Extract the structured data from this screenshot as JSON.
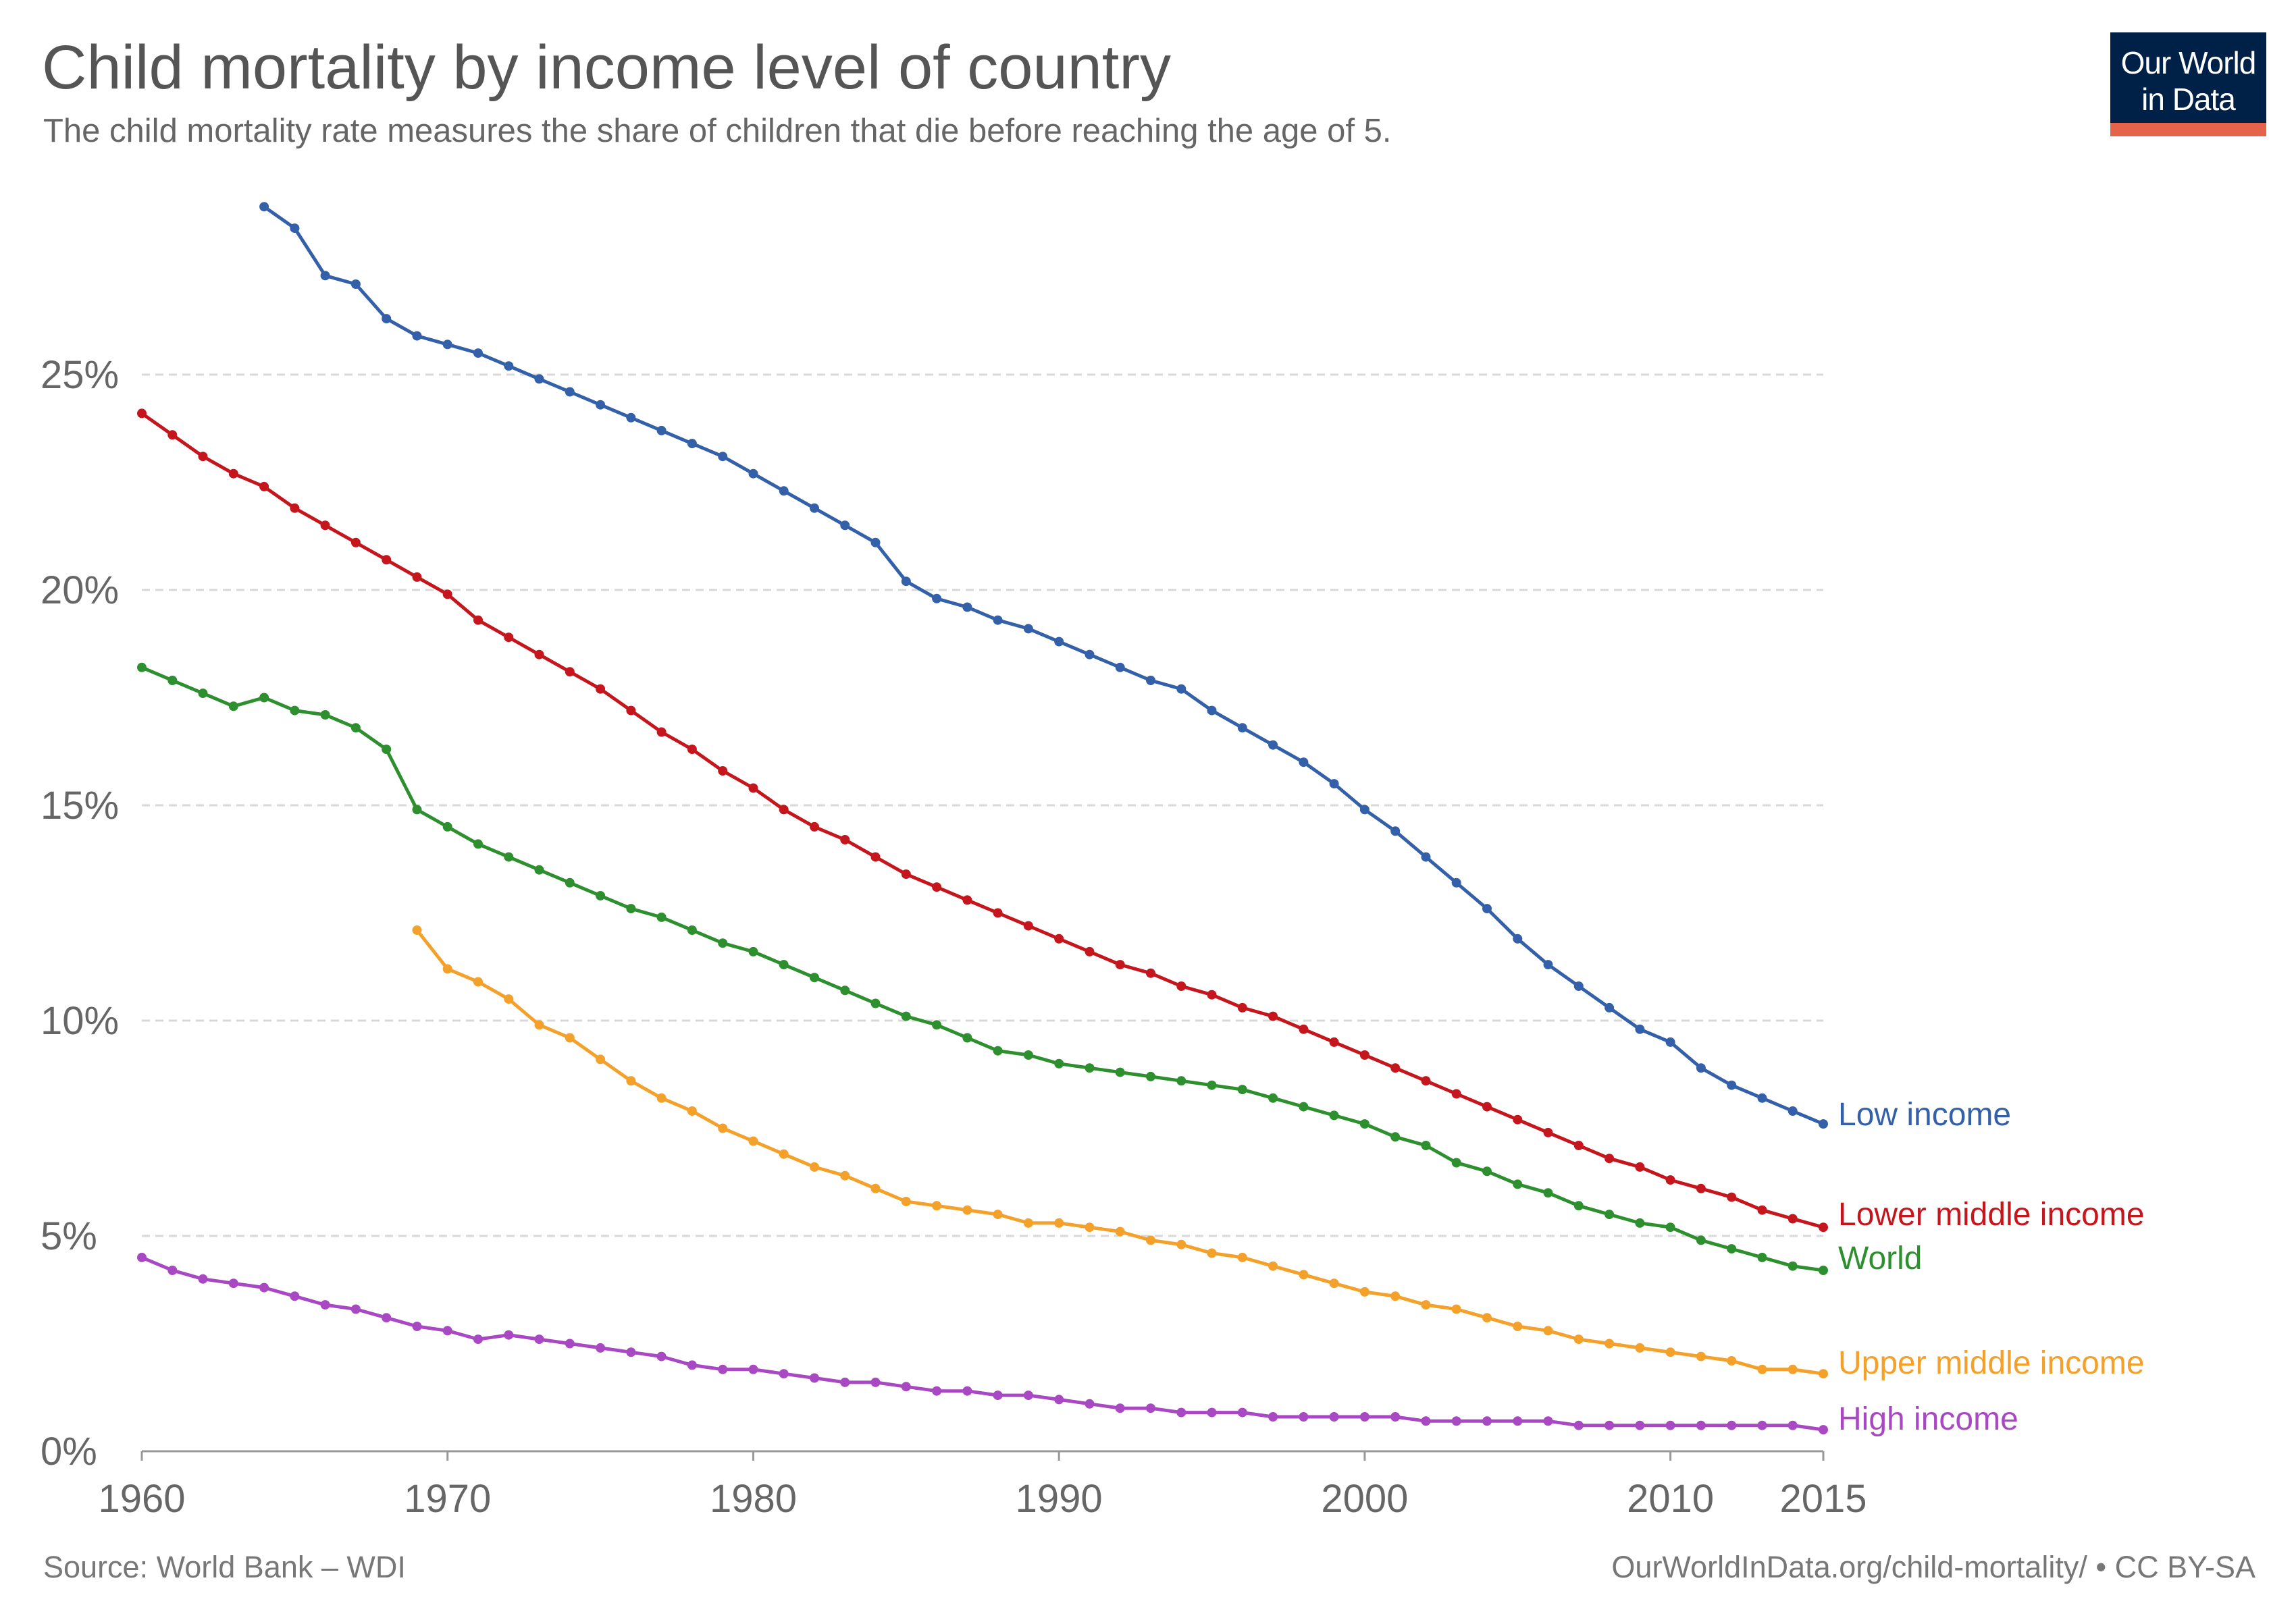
{
  "header": {
    "title": "Child mortality by income level of country",
    "subtitle": "The child mortality rate measures the share of children that die before reaching the age of 5."
  },
  "logo": {
    "line1": "Our World",
    "line2": "in Data"
  },
  "footer": {
    "source": "Source: World Bank – WDI",
    "url": "OurWorldInData.org/child-mortality/ • CC BY-SA"
  },
  "colors": {
    "low": "#3360a9",
    "lower_middle": "#c4161c",
    "world": "#2e8f2e",
    "upper_middle": "#f3a12a",
    "high": "#a848c2",
    "grid": "#d8d8d8",
    "axis": "#999999"
  },
  "chart_data": {
    "type": "line",
    "title": "Child mortality by income level of country",
    "xlabel": "",
    "ylabel": "",
    "xlim": [
      1960,
      2015
    ],
    "ylim": [
      0,
      30
    ],
    "x_ticks": [
      1960,
      1970,
      1980,
      1990,
      2000,
      2010,
      2015
    ],
    "y_ticks": [
      0,
      5,
      10,
      15,
      20,
      25
    ],
    "y_tick_labels": [
      "0%",
      "5%",
      "10%",
      "15%",
      "20%",
      "25%"
    ],
    "grid": true,
    "legend": "inline-right",
    "series": [
      {
        "name": "Low income",
        "key": "low",
        "start": 1964,
        "values": [
          28.9,
          28.4,
          27.3,
          27.1,
          26.3,
          25.9,
          25.7,
          25.5,
          25.2,
          24.9,
          24.6,
          24.3,
          24.0,
          23.7,
          23.4,
          23.1,
          22.7,
          22.3,
          21.9,
          21.5,
          21.1,
          20.2,
          19.8,
          19.6,
          19.3,
          19.1,
          18.8,
          18.5,
          18.2,
          17.9,
          17.7,
          17.2,
          16.8,
          16.4,
          16.0,
          15.5,
          14.9,
          14.4,
          13.8,
          13.2,
          12.6,
          11.9,
          11.3,
          10.8,
          10.3,
          9.8,
          9.5,
          8.9,
          8.5,
          8.2,
          7.9,
          7.6
        ]
      },
      {
        "name": "Lower middle income",
        "key": "lower_middle",
        "start": 1960,
        "values": [
          24.1,
          23.6,
          23.1,
          22.7,
          22.4,
          21.9,
          21.5,
          21.1,
          20.7,
          20.3,
          19.9,
          19.3,
          18.9,
          18.5,
          18.1,
          17.7,
          17.2,
          16.7,
          16.3,
          15.8,
          15.4,
          14.9,
          14.5,
          14.2,
          13.8,
          13.4,
          13.1,
          12.8,
          12.5,
          12.2,
          11.9,
          11.6,
          11.3,
          11.1,
          10.8,
          10.6,
          10.3,
          10.1,
          9.8,
          9.5,
          9.2,
          8.9,
          8.6,
          8.3,
          8.0,
          7.7,
          7.4,
          7.1,
          6.8,
          6.6,
          6.3,
          6.1,
          5.9,
          5.6,
          5.4,
          5.2
        ]
      },
      {
        "name": "World",
        "key": "world",
        "start": 1960,
        "values": [
          18.2,
          17.9,
          17.6,
          17.3,
          17.5,
          17.2,
          17.1,
          16.8,
          16.3,
          14.9,
          14.5,
          14.1,
          13.8,
          13.5,
          13.2,
          12.9,
          12.6,
          12.4,
          12.1,
          11.8,
          11.6,
          11.3,
          11.0,
          10.7,
          10.4,
          10.1,
          9.9,
          9.6,
          9.3,
          9.2,
          9.0,
          8.9,
          8.8,
          8.7,
          8.6,
          8.5,
          8.4,
          8.2,
          8.0,
          7.8,
          7.6,
          7.3,
          7.1,
          6.7,
          6.5,
          6.2,
          6.0,
          5.7,
          5.5,
          5.3,
          5.2,
          4.9,
          4.7,
          4.5,
          4.3,
          4.2
        ]
      },
      {
        "name": "Upper middle income",
        "key": "upper_middle",
        "start": 1969,
        "values": [
          12.1,
          11.2,
          10.9,
          10.5,
          9.9,
          9.6,
          9.1,
          8.6,
          8.2,
          7.9,
          7.5,
          7.2,
          6.9,
          6.6,
          6.4,
          6.1,
          5.8,
          5.7,
          5.6,
          5.5,
          5.3,
          5.3,
          5.2,
          5.1,
          4.9,
          4.8,
          4.6,
          4.5,
          4.3,
          4.1,
          3.9,
          3.7,
          3.6,
          3.4,
          3.3,
          3.1,
          2.9,
          2.8,
          2.6,
          2.5,
          2.4,
          2.3,
          2.2,
          2.1,
          1.9,
          1.9,
          1.8
        ]
      },
      {
        "name": "High income",
        "key": "high",
        "start": 1960,
        "values": [
          4.5,
          4.2,
          4.0,
          3.9,
          3.8,
          3.6,
          3.4,
          3.3,
          3.1,
          2.9,
          2.8,
          2.6,
          2.7,
          2.6,
          2.5,
          2.4,
          2.3,
          2.2,
          2.0,
          1.9,
          1.9,
          1.8,
          1.7,
          1.6,
          1.6,
          1.5,
          1.4,
          1.4,
          1.3,
          1.3,
          1.2,
          1.1,
          1.0,
          1.0,
          0.9,
          0.9,
          0.9,
          0.8,
          0.8,
          0.8,
          0.8,
          0.8,
          0.7,
          0.7,
          0.7,
          0.7,
          0.7,
          0.6,
          0.6,
          0.6,
          0.6,
          0.6,
          0.6,
          0.6,
          0.6,
          0.5
        ]
      }
    ]
  }
}
